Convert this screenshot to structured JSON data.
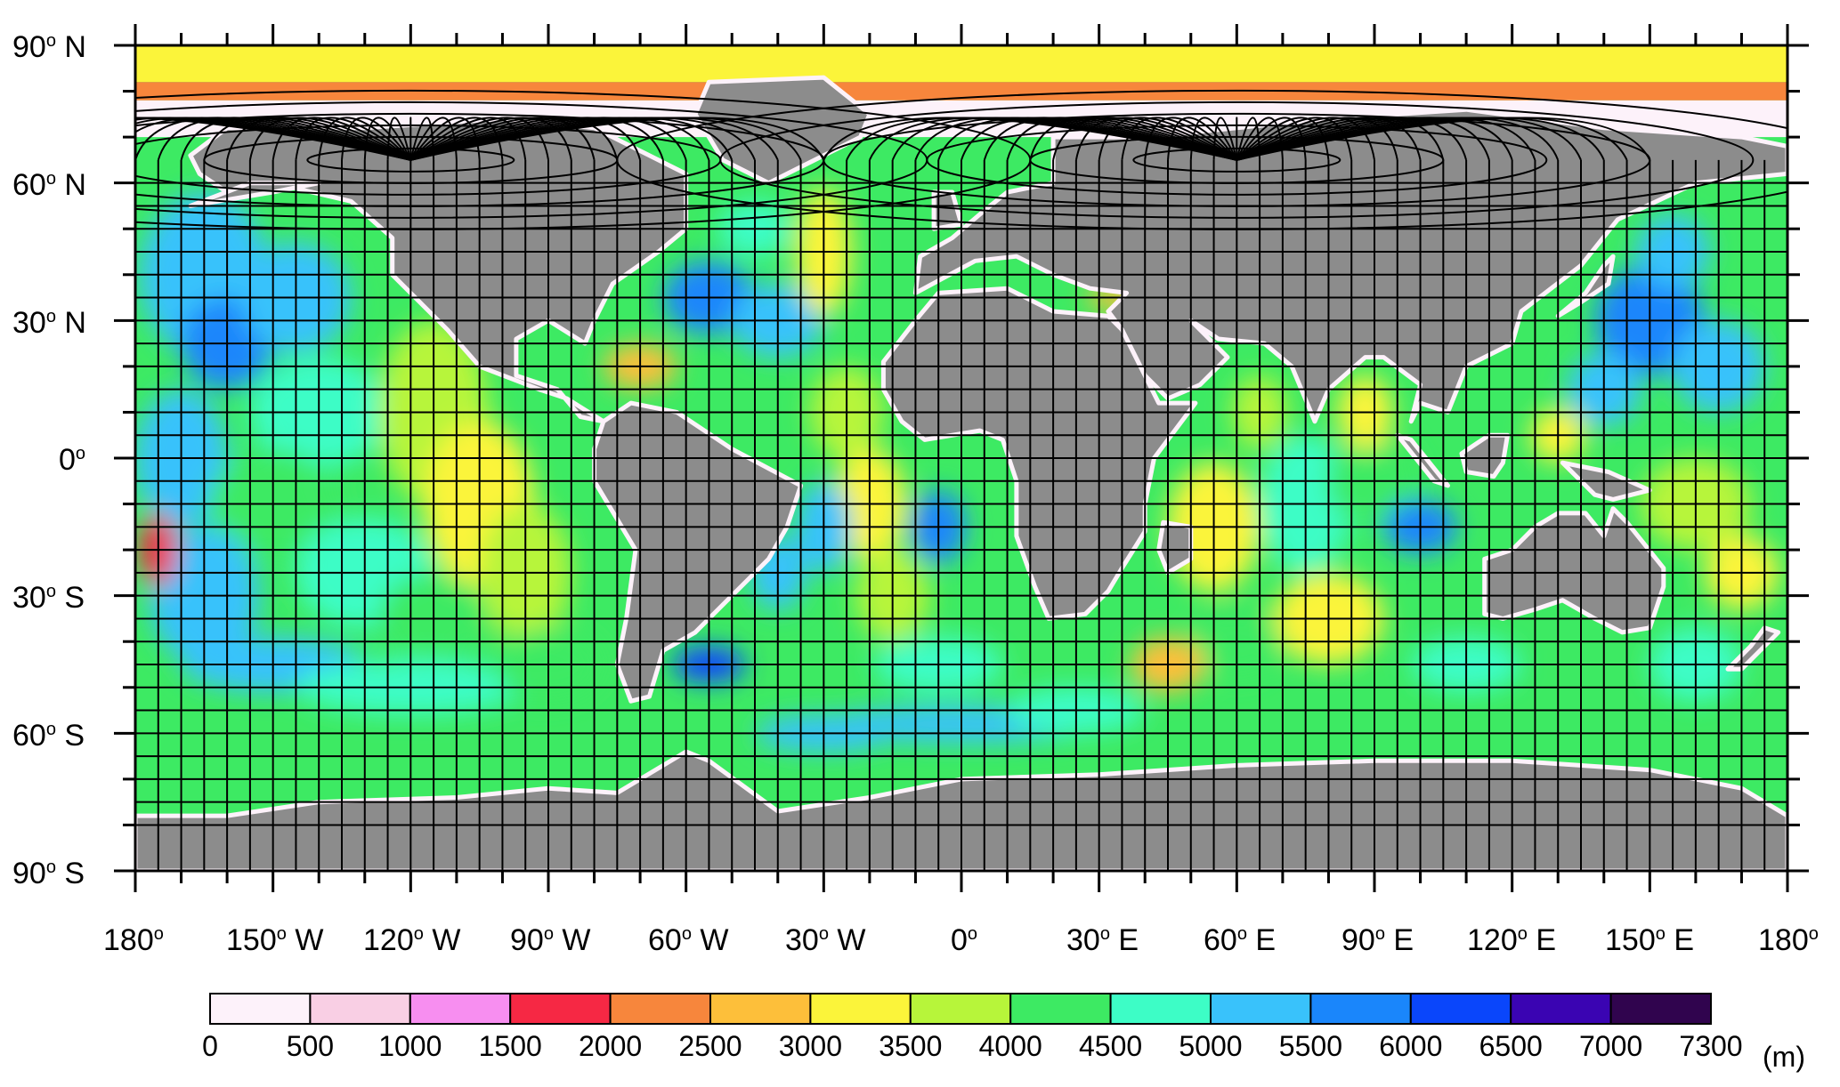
{
  "map": {
    "lat_labels": [
      {
        "deg": "90",
        "hemi": "N",
        "lat": 90
      },
      {
        "deg": "60",
        "hemi": "N",
        "lat": 60
      },
      {
        "deg": "30",
        "hemi": "N",
        "lat": 30
      },
      {
        "deg": "0",
        "hemi": "",
        "lat": 0
      },
      {
        "deg": "30",
        "hemi": "S",
        "lat": -30
      },
      {
        "deg": "60",
        "hemi": "S",
        "lat": -60
      },
      {
        "deg": "90",
        "hemi": "S",
        "lat": -90
      }
    ],
    "lon_labels": [
      {
        "deg": "180",
        "hemi": "",
        "lon": -180
      },
      {
        "deg": "150",
        "hemi": "W",
        "lon": -150
      },
      {
        "deg": "120",
        "hemi": "W",
        "lon": -120
      },
      {
        "deg": "90",
        "hemi": "W",
        "lon": -90
      },
      {
        "deg": "60",
        "hemi": "W",
        "lon": -60
      },
      {
        "deg": "30",
        "hemi": "W",
        "lon": -30
      },
      {
        "deg": "0",
        "hemi": "",
        "lon": 0
      },
      {
        "deg": "30",
        "hemi": "E",
        "lon": 30
      },
      {
        "deg": "60",
        "hemi": "E",
        "lon": 60
      },
      {
        "deg": "90",
        "hemi": "E",
        "lon": 90
      },
      {
        "deg": "120",
        "hemi": "E",
        "lon": 120
      },
      {
        "deg": "150",
        "hemi": "E",
        "lon": 150
      },
      {
        "deg": "180",
        "hemi": "",
        "lon": 180
      }
    ],
    "land_color": "#8c8c8c",
    "grid_color": "#000000",
    "poles_lon": [
      -120,
      60
    ]
  },
  "colorbar": {
    "unit": "(m)",
    "levels": [
      "0",
      "500",
      "1000",
      "1500",
      "2000",
      "2500",
      "3000",
      "3500",
      "4000",
      "4500",
      "5000",
      "5500",
      "6000",
      "6500",
      "7000",
      "7300"
    ],
    "colors": [
      "#fdf2fa",
      "#f9cfe4",
      "#f78ef0",
      "#f62844",
      "#f7863c",
      "#fdbf3a",
      "#fbf43a",
      "#b7f53a",
      "#3dea63",
      "#3dfdc6",
      "#39c2fb",
      "#1a86fb",
      "#0a46fb",
      "#3a04b2",
      "#30044e"
    ]
  }
}
